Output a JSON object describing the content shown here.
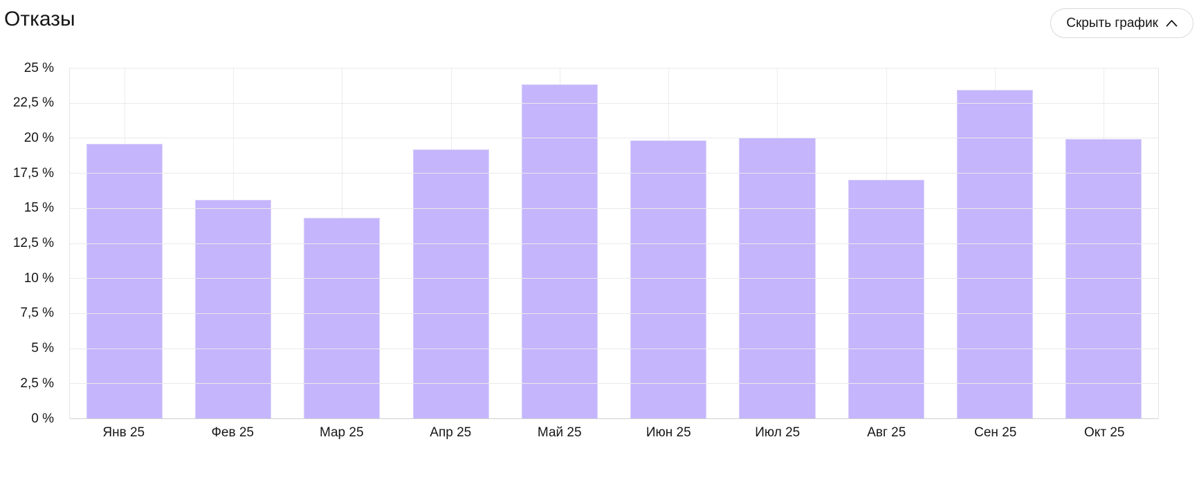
{
  "header": {
    "title": "Отказы",
    "toggle_button": {
      "label": "Скрыть график",
      "icon": "chevron-up-icon"
    }
  },
  "chart_data": {
    "type": "bar",
    "title": "Отказы",
    "categories": [
      "Янв 25",
      "Фев 25",
      "Мар 25",
      "Апр 25",
      "Май 25",
      "Июн 25",
      "Июл 25",
      "Авг 25",
      "Сен 25",
      "Окт 25"
    ],
    "values": [
      19.6,
      15.6,
      14.3,
      19.2,
      23.8,
      19.8,
      20.0,
      17.0,
      23.4,
      19.9
    ],
    "unit": "%",
    "ylim": [
      0,
      25
    ],
    "y_tick_step": 2.5,
    "y_tick_labels_bottom_to_top": [
      "0 %",
      "2,5 %",
      "5 %",
      "7,5 %",
      "10 %",
      "12,5 %",
      "15 %",
      "17,5 %",
      "20 %",
      "22,5 %",
      "25 %"
    ],
    "grid": true,
    "vertical_gridlines": "at category centers",
    "legend": "none",
    "bar_color": "#c4b5fd"
  },
  "colors": {
    "bar": "#c4b5fd",
    "bar_edge": "#dcd3fb",
    "gridline": "#e9e9e9",
    "axis_line": "#cfcfcf",
    "plot_border": "#e3e3e3",
    "button_border": "#d9d9d9",
    "text": "#161616"
  }
}
